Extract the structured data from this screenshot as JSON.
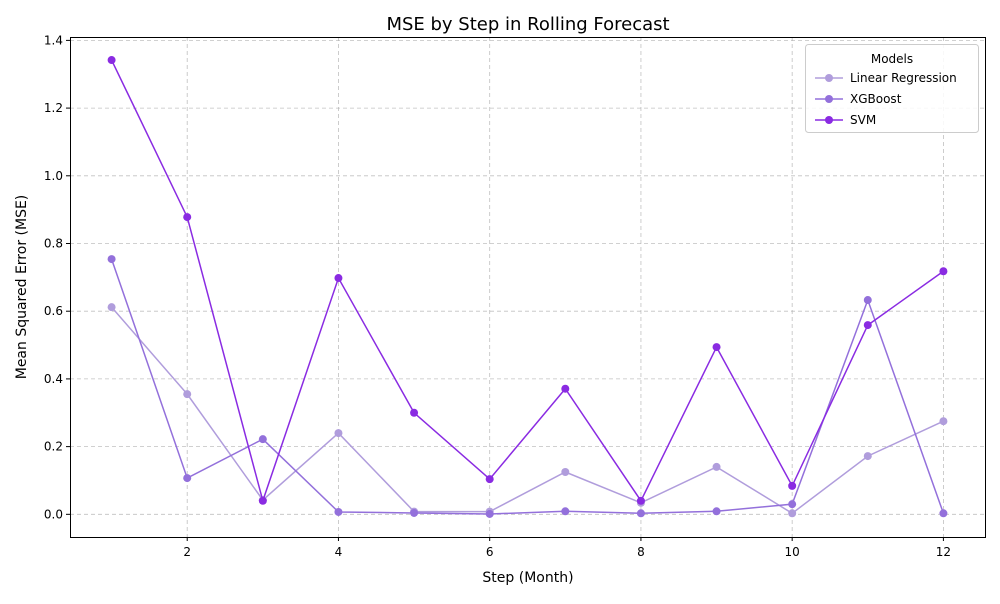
{
  "chart_data": {
    "type": "line",
    "title": "MSE by Step in Rolling Forecast",
    "xlabel": "Step (Month)",
    "ylabel": "Mean Squared Error (MSE)",
    "xlim": [
      0.45,
      12.55
    ],
    "ylim": [
      -0.067,
      1.41
    ],
    "x": [
      1,
      2,
      3,
      4,
      5,
      6,
      7,
      8,
      9,
      10,
      11,
      12
    ],
    "x_ticks": [
      2,
      4,
      6,
      8,
      10,
      12
    ],
    "y_ticks": [
      0.0,
      0.2,
      0.4,
      0.6,
      0.8,
      1.0,
      1.2,
      1.4
    ],
    "grid": true,
    "legend": {
      "title": "Models",
      "position": "top-right"
    },
    "series": [
      {
        "name": "Linear Regression",
        "color": "#b09ddc",
        "values": [
          0.612,
          0.355,
          0.042,
          0.24,
          0.008,
          0.008,
          0.125,
          0.034,
          0.14,
          0.003,
          0.172,
          0.275
        ]
      },
      {
        "name": "XGBoost",
        "color": "#9370db",
        "values": [
          0.754,
          0.107,
          0.222,
          0.007,
          0.004,
          0.001,
          0.009,
          0.003,
          0.009,
          0.03,
          0.633,
          0.003
        ]
      },
      {
        "name": "SVM",
        "color": "#8a2be2",
        "values": [
          1.342,
          0.878,
          0.04,
          0.698,
          0.3,
          0.104,
          0.371,
          0.04,
          0.494,
          0.084,
          0.559,
          0.718
        ]
      }
    ]
  }
}
